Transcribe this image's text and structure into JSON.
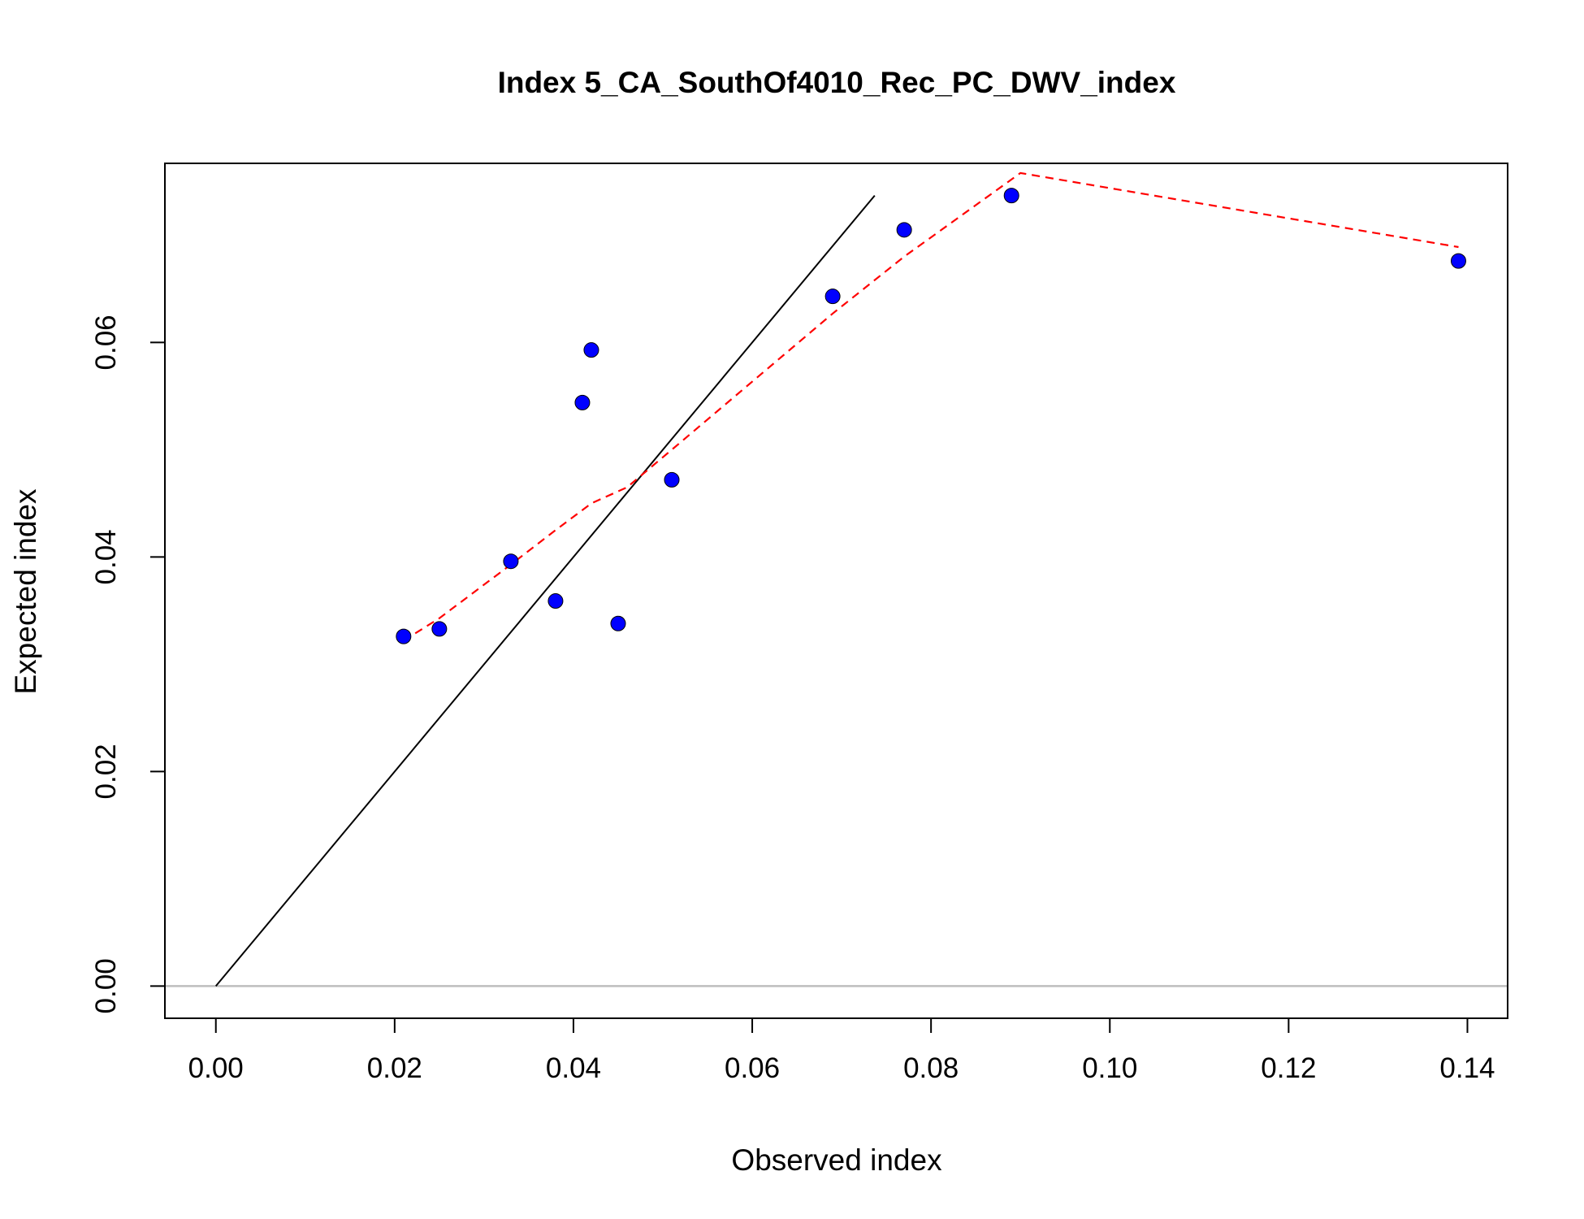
{
  "chart_data": {
    "type": "scatter",
    "title": "Index 5_CA_SouthOf4010_Rec_PC_DWV_index",
    "xlabel": "Observed index",
    "ylabel": "Expected index",
    "xlim": [
      -0.0057,
      0.1445
    ],
    "ylim": [
      -0.003,
      0.0767
    ],
    "x_ticks": [
      0.0,
      0.02,
      0.04,
      0.06,
      0.08,
      0.1,
      0.12,
      0.14
    ],
    "x_tick_labels": [
      "0.00",
      "0.02",
      "0.04",
      "0.06",
      "0.08",
      "0.10",
      "0.12",
      "0.14"
    ],
    "y_ticks": [
      0.0,
      0.02,
      0.04,
      0.06
    ],
    "y_tick_labels": [
      "0.00",
      "0.02",
      "0.04",
      "0.06"
    ],
    "grid": false,
    "points": {
      "x": [
        0.021,
        0.025,
        0.033,
        0.038,
        0.041,
        0.042,
        0.045,
        0.051,
        0.069,
        0.077,
        0.089,
        0.139
      ],
      "y": [
        0.0326,
        0.0333,
        0.0396,
        0.0359,
        0.0544,
        0.0593,
        0.0338,
        0.0472,
        0.0643,
        0.0705,
        0.0737,
        0.0676
      ],
      "color": "#0000ff",
      "edge_color": "#000000"
    },
    "identity_line": {
      "x": [
        0.0,
        0.0737
      ],
      "y": [
        0.0,
        0.0737
      ],
      "color": "#000000"
    },
    "smoother": {
      "x": [
        0.021,
        0.025,
        0.033,
        0.038,
        0.042,
        0.046,
        0.051,
        0.069,
        0.077,
        0.09,
        0.139
      ],
      "y": [
        0.0322,
        0.0343,
        0.0393,
        0.0425,
        0.045,
        0.0465,
        0.05,
        0.0627,
        0.068,
        0.0758,
        0.0689
      ],
      "color": "#ff0000",
      "style": "dashed"
    },
    "zero_line": {
      "y": 0.0,
      "color": "#bebebe"
    }
  }
}
